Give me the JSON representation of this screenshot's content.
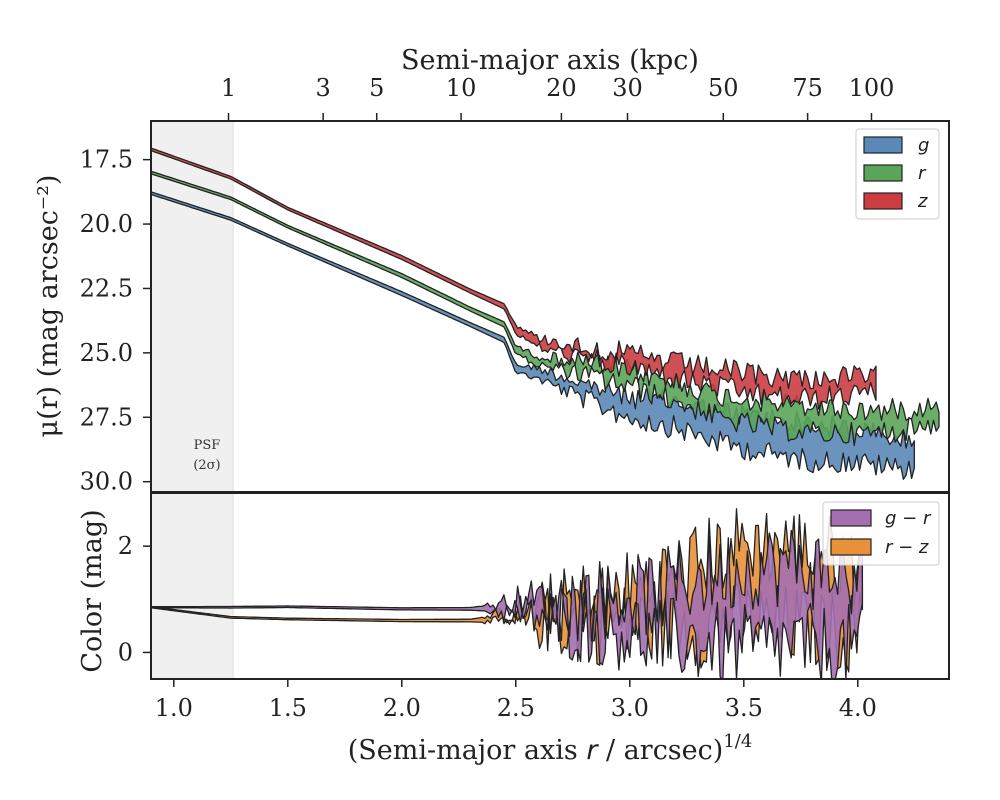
{
  "chart_data": [
    {
      "type": "area",
      "panel": "surface-brightness",
      "top_xlabel": "Semi-major axis (kpc)",
      "top_ticks": [
        {
          "x": 1.24,
          "label": "1"
        },
        {
          "x": 1.655,
          "label": "3"
        },
        {
          "x": 1.89,
          "label": "5"
        },
        {
          "x": 2.26,
          "label": "10"
        },
        {
          "x": 2.7,
          "label": "20"
        },
        {
          "x": 2.99,
          "label": "30"
        },
        {
          "x": 3.41,
          "label": "50"
        },
        {
          "x": 3.78,
          "label": "75"
        },
        {
          "x": 4.06,
          "label": "100"
        }
      ],
      "ylabel": "μ(r) (mag arcsec⁻²)",
      "yticks": [
        "17.5",
        "20.0",
        "22.5",
        "25.0",
        "27.5",
        "30.0"
      ],
      "xlim": [
        0.9,
        4.4
      ],
      "ylim": [
        30.4,
        16.0
      ],
      "y_inverted": true,
      "psf_band": {
        "x0": 0.9,
        "x1": 1.26,
        "label_line1": "PSF",
        "label_line2": "(2σ)"
      },
      "legend_position": "top-right",
      "series": [
        {
          "name": "g",
          "color": "#5a88b7",
          "x": [
            0.9,
            1.25,
            1.5,
            2.0,
            2.3,
            2.45,
            2.5,
            2.6,
            2.8,
            3.0,
            3.2,
            3.4,
            3.6,
            3.8,
            4.0,
            4.1,
            4.25
          ],
          "y": [
            18.8,
            19.8,
            20.8,
            22.7,
            23.9,
            24.5,
            25.6,
            25.8,
            26.5,
            27.1,
            27.4,
            27.9,
            28.2,
            28.5,
            28.6,
            28.8,
            29.0
          ],
          "band": [
            0.1,
            0.1,
            0.1,
            0.15,
            0.15,
            0.2,
            0.3,
            0.4,
            0.6,
            0.8,
            1.0,
            1.2,
            1.4,
            1.4,
            1.3,
            1.2,
            1.0
          ]
        },
        {
          "name": "r",
          "color": "#5aa55a",
          "x": [
            0.9,
            1.25,
            1.5,
            2.0,
            2.3,
            2.45,
            2.5,
            2.6,
            2.8,
            3.0,
            3.2,
            3.4,
            3.6,
            3.8,
            4.0,
            4.2,
            4.36
          ],
          "y": [
            18.0,
            19.0,
            20.1,
            22.0,
            23.3,
            23.9,
            24.9,
            25.3,
            25.6,
            26.0,
            26.5,
            27.1,
            27.4,
            27.6,
            27.7,
            27.6,
            27.3
          ],
          "band": [
            0.1,
            0.1,
            0.1,
            0.15,
            0.15,
            0.2,
            0.3,
            0.35,
            0.5,
            0.6,
            0.7,
            0.9,
            1.0,
            1.0,
            0.9,
            0.8,
            0.7
          ]
        },
        {
          "name": "z",
          "color": "#cc3d42",
          "x": [
            0.9,
            1.25,
            1.5,
            2.0,
            2.3,
            2.45,
            2.5,
            2.6,
            2.8,
            3.0,
            3.2,
            3.4,
            3.6,
            3.8,
            3.95,
            4.08
          ],
          "y": [
            17.1,
            18.2,
            19.4,
            21.3,
            22.6,
            23.2,
            24.1,
            24.6,
            25.0,
            25.3,
            25.7,
            26.0,
            26.3,
            26.4,
            26.3,
            26.2
          ],
          "band": [
            0.1,
            0.1,
            0.1,
            0.15,
            0.15,
            0.2,
            0.3,
            0.35,
            0.45,
            0.5,
            0.6,
            0.7,
            0.8,
            0.8,
            0.7,
            0.6
          ]
        }
      ]
    },
    {
      "type": "area",
      "panel": "color",
      "xlabel": "(Semi-major axis r / arcsec)1/4",
      "xlabel_parts": {
        "prefix": "(Semi-major axis ",
        "var": "r",
        "middle": " / arcsec)",
        "sup": "1/4"
      },
      "xticks": [
        "1.0",
        "1.5",
        "2.0",
        "2.5",
        "3.0",
        "3.5",
        "4.0"
      ],
      "ylabel": "Color (mag)",
      "yticks": [
        "0",
        "2"
      ],
      "xlim": [
        0.9,
        4.4
      ],
      "ylim": [
        -0.5,
        3.0
      ],
      "legend_position": "top-right",
      "series": [
        {
          "name": "g − r",
          "color": "#a46fb0",
          "x": [
            0.9,
            1.25,
            1.5,
            2.0,
            2.3,
            2.5,
            2.7,
            2.9,
            3.1,
            3.3,
            3.5,
            3.7,
            3.9,
            4.03
          ],
          "y": [
            0.85,
            0.85,
            0.86,
            0.82,
            0.82,
            0.85,
            0.8,
            0.75,
            0.7,
            0.8,
            0.85,
            0.9,
            0.8,
            0.75
          ],
          "band": [
            0.02,
            0.03,
            0.03,
            0.04,
            0.05,
            0.2,
            0.35,
            0.5,
            0.8,
            1.2,
            1.5,
            1.5,
            1.4,
            1.2
          ]
        },
        {
          "name": "r − z",
          "color": "#e8913a",
          "x": [
            0.9,
            1.25,
            1.5,
            2.0,
            2.3,
            2.5,
            2.7,
            2.9,
            3.1,
            3.3,
            3.5,
            3.7,
            3.9,
            4.03
          ],
          "y": [
            0.85,
            0.66,
            0.63,
            0.6,
            0.6,
            0.65,
            0.7,
            0.8,
            0.9,
            1.1,
            1.3,
            1.25,
            1.1,
            1.0
          ],
          "band": [
            0.02,
            0.03,
            0.03,
            0.04,
            0.05,
            0.2,
            0.35,
            0.5,
            0.8,
            1.2,
            1.5,
            1.5,
            1.4,
            1.2
          ]
        }
      ]
    }
  ]
}
